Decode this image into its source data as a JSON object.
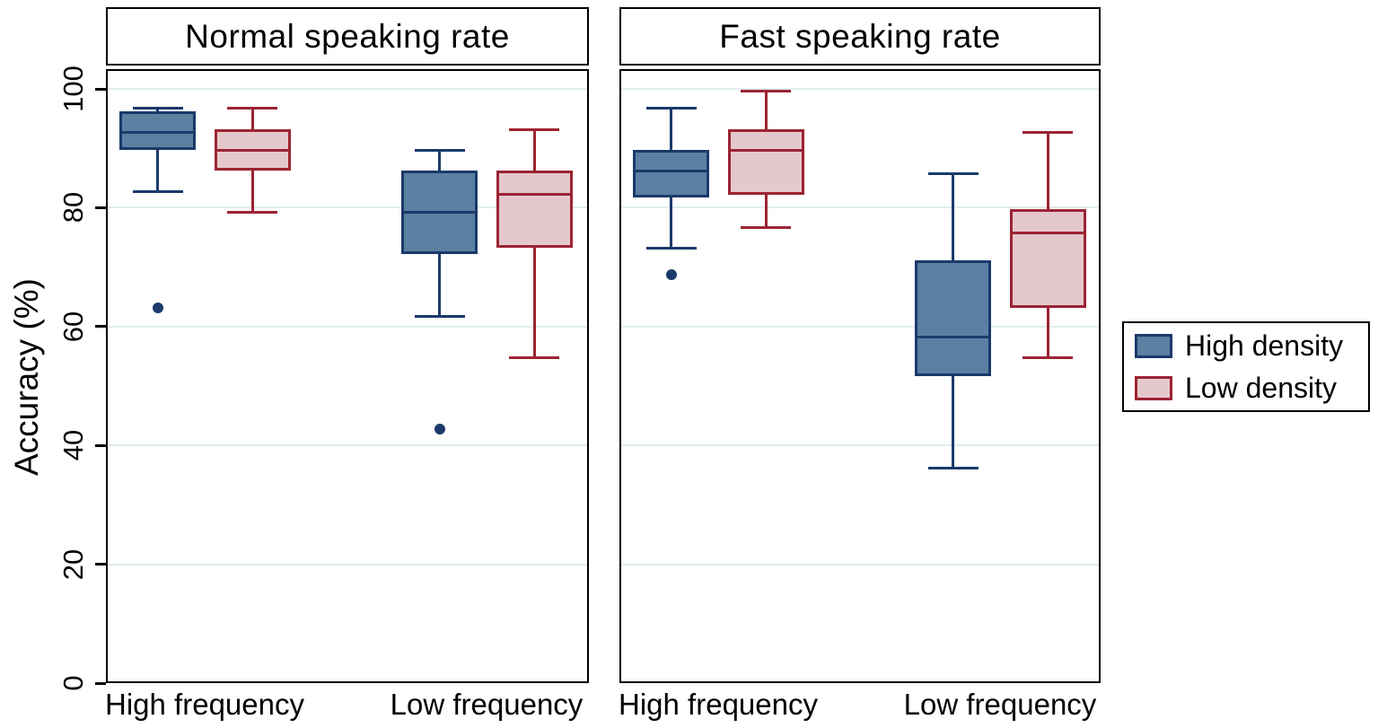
{
  "chart_data": {
    "type": "grouped_boxplot",
    "title": "",
    "ylabel": "Accuracy (%)",
    "ylim": [
      0,
      100
    ],
    "yticks": [
      0,
      20,
      40,
      60,
      80,
      100
    ],
    "grid": "horizontal",
    "legend_position": "right-middle",
    "panels": [
      {
        "title": "Normal speaking rate",
        "categories": [
          "High frequency",
          "Low frequency"
        ],
        "boxes": [
          {
            "category": "High frequency",
            "series": "High density",
            "whisker_low": 83,
            "q1": 90,
            "median": 93,
            "q3": 96.5,
            "whisker_high": 97,
            "outliers": [
              63.5
            ]
          },
          {
            "category": "High frequency",
            "series": "Low density",
            "whisker_low": 79.5,
            "q1": 86.5,
            "median": 90,
            "q3": 93.5,
            "whisker_high": 97,
            "outliers": []
          },
          {
            "category": "Low frequency",
            "series": "High density",
            "whisker_low": 62,
            "q1": 72.5,
            "median": 79.5,
            "q3": 86.5,
            "whisker_high": 90,
            "outliers": [
              43
            ]
          },
          {
            "category": "Low frequency",
            "series": "Low density",
            "whisker_low": 55,
            "q1": 73.5,
            "median": 82.5,
            "q3": 86.5,
            "whisker_high": 93.5,
            "outliers": []
          }
        ]
      },
      {
        "title": "Fast speaking rate",
        "categories": [
          "High frequency",
          "Low frequency"
        ],
        "boxes": [
          {
            "category": "High frequency",
            "series": "High density",
            "whisker_low": 73.5,
            "q1": 82,
            "median": 86.5,
            "q3": 90,
            "whisker_high": 97,
            "outliers": [
              69
            ]
          },
          {
            "category": "High frequency",
            "series": "Low density",
            "whisker_low": 77,
            "q1": 82.5,
            "median": 90,
            "q3": 93.5,
            "whisker_high": 100,
            "outliers": []
          },
          {
            "category": "Low frequency",
            "series": "High density",
            "whisker_low": 36.5,
            "q1": 52,
            "median": 58.5,
            "q3": 71.5,
            "whisker_high": 86,
            "outliers": []
          },
          {
            "category": "Low frequency",
            "series": "Low density",
            "whisker_low": 55,
            "q1": 63.5,
            "median": 76,
            "q3": 80,
            "whisker_high": 93,
            "outliers": []
          }
        ]
      }
    ],
    "legend": [
      {
        "label": "High density",
        "fill": "#5b80a2",
        "stroke": "#1b3a6a"
      },
      {
        "label": "Low density",
        "fill": "#e5c8cc",
        "stroke": "#9c2433"
      }
    ],
    "colors": {
      "gridline": "#e0ecf0",
      "panel_border": "#000000",
      "background": "#ffffff"
    }
  }
}
